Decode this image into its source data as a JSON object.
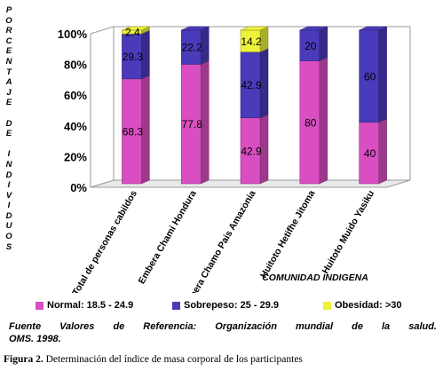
{
  "chart_data": {
    "type": "bar",
    "stacked": true,
    "categories": [
      "Total de personas cabildos",
      "Embera Chami Hondura",
      "Embera Chamo Pais Amazonia",
      "Huitoto Hetifhe Jitoma",
      "Huitoto Muido Yasiku"
    ],
    "series": [
      {
        "name": "Normal: 18.5 - 24.9",
        "color": "#d94fc2",
        "values": [
          68.3,
          77.8,
          42.9,
          80,
          40
        ]
      },
      {
        "name": "Sobrepeso: 25 - 29.9",
        "color": "#4a3bbb",
        "values": [
          29.3,
          22.2,
          42.9,
          20,
          60
        ]
      },
      {
        "name": "Obesidad: >30",
        "color": "#eef23a",
        "values": [
          2.4,
          0,
          14.2,
          0,
          0
        ]
      }
    ],
    "data_labels": [
      [
        "68.3",
        "29.3",
        "2.4"
      ],
      [
        "77.8",
        "22.2",
        ""
      ],
      [
        "42.9",
        "42.9",
        "14.2"
      ],
      [
        "80",
        "20",
        ""
      ],
      [
        "40",
        "60",
        ""
      ]
    ],
    "yticks": [
      "0%",
      "20%",
      "40%",
      "60%",
      "80%",
      "100%"
    ],
    "ylim": [
      0,
      100
    ],
    "ylabel": "PORCENTAJE DE INDIVIDUOS",
    "xlabel": "COMUNIDAD INDIGENA",
    "legend_position": "bottom",
    "grid": false
  },
  "ylabel_letters": [
    "P",
    "O",
    "R",
    "C",
    "E",
    "N",
    "T",
    "A",
    "J",
    "E",
    "",
    "D",
    "E",
    "",
    "I",
    "N",
    "D",
    "I",
    "V",
    "I",
    "D",
    "U",
    "O",
    "S"
  ],
  "source": {
    "line1": "Fuente Valores de Referencia: Organización mundial de la salud.",
    "line2": "OMS. 1998."
  },
  "caption": {
    "label": "Figura 2.",
    "text": " Determinación del índice  de masa corporal de los participantes"
  }
}
